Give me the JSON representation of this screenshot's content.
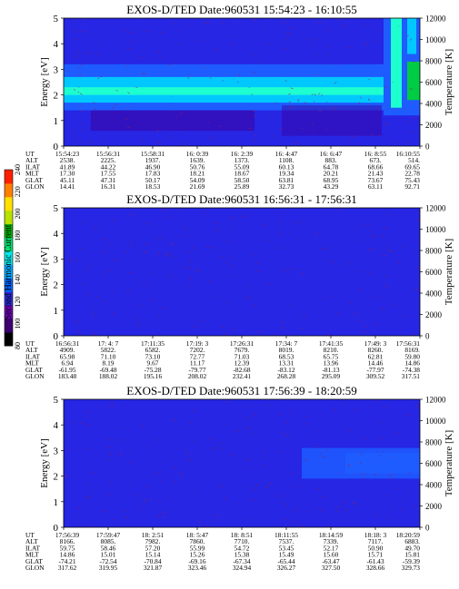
{
  "colors": {
    "purple": "#3c00a0",
    "blue": "#2626e4",
    "mid_blue": "#1e5cff",
    "cyan": "#00c8ff",
    "aqua": "#1effcf",
    "green": "#00cc44",
    "noise": "#9a1e54"
  },
  "colorbar": {
    "label": "Second Harmonic Current",
    "ticks": [
      "80",
      "100",
      "120",
      "140",
      "160",
      "180",
      "200",
      "220",
      "240"
    ],
    "colors": [
      "#000000",
      "#3c0070",
      "#6a00b0",
      "#2a2ad8",
      "#0066ff",
      "#00a8ff",
      "#00e8e8",
      "#00e070",
      "#00b000",
      "#b8e000",
      "#ffe000",
      "#ff8000",
      "#ff2000"
    ]
  },
  "panels": [
    {
      "title": "EXOS-D/TED  Date:960531  15:54:23 - 16:10:55",
      "ylabel": "Energy [eV]",
      "y2label": "Temperature [K]",
      "yticks": [
        "0",
        "1",
        "2",
        "3",
        "4",
        "5"
      ],
      "y2ticks": [
        "0",
        "2000",
        "4000",
        "6000",
        "8000",
        "10000",
        "12000"
      ],
      "rows": [
        {
          "label": "UT",
          "values": [
            "15:54:23",
            "15:56:31",
            "15:58:31",
            "16: 0:39",
            "16: 2:39",
            "16: 4:47",
            "16: 6:47",
            "16: 8:55",
            "16:10:55"
          ]
        },
        {
          "label": "ALT",
          "values": [
            "2538.",
            "2225.",
            "1937.",
            "1639.",
            "1373.",
            "1108.",
            "883.",
            "673.",
            "514."
          ]
        },
        {
          "label": "ILAT",
          "values": [
            "41.89",
            "44.22",
            "46.90",
            "50.76",
            "55.09",
            "60.13",
            "64.78",
            "68.66",
            "69.65"
          ]
        },
        {
          "label": "MLT",
          "values": [
            "17.30",
            "17.55",
            "17.83",
            "18.21",
            "18.67",
            "19.34",
            "20.21",
            "21.43",
            "22.78"
          ]
        },
        {
          "label": "GLAT",
          "values": [
            "45.11",
            "47.31",
            "50.17",
            "54.09",
            "58.50",
            "63.81",
            "68.95",
            "73.67",
            "75.43"
          ]
        },
        {
          "label": "GLON",
          "values": [
            "14.41",
            "16.31",
            "18.53",
            "21.69",
            "25.89",
            "32.73",
            "43.29",
            "63.11",
            "92.71"
          ]
        }
      ]
    },
    {
      "title": "EXOS-D/TED  Date:960531  16:56:31 - 17:56:31",
      "ylabel": "Energy [eV]",
      "y2label": "Temperature [K]",
      "yticks": [
        "0",
        "1",
        "2",
        "3",
        "4",
        "5"
      ],
      "y2ticks": [
        "0",
        "2000",
        "4000",
        "6000",
        "8000",
        "10000",
        "12000"
      ],
      "rows": [
        {
          "label": "UT",
          "values": [
            "16:56:31",
            "17: 4: 7",
            "17:11:35",
            "17:19: 3",
            "17:26:31",
            "17:34: 7",
            "17:41:35",
            "17:49: 3",
            "17:56:31"
          ]
        },
        {
          "label": "ALT",
          "values": [
            "4909.",
            "5822.",
            "6582.",
            "7202.",
            "7679.",
            "8019.",
            "8210.",
            "8260.",
            "8169."
          ]
        },
        {
          "label": "ILAT",
          "values": [
            "65.98",
            "71.10",
            "73.10",
            "72.77",
            "71.03",
            "68.53",
            "65.75",
            "62.81",
            "59.80"
          ]
        },
        {
          "label": "MLT",
          "values": [
            "6.94",
            "8.19",
            "9.67",
            "11.17",
            "12.39",
            "13.31",
            "13.96",
            "14.46",
            "14.86"
          ]
        },
        {
          "label": "GLAT",
          "values": [
            "-61.95",
            "-69.48",
            "-75.28",
            "-79.77",
            "-82.68",
            "-83.12",
            "-81.13",
            "-77.97",
            "-74.38"
          ]
        },
        {
          "label": "GLON",
          "values": [
            "183.48",
            "188.02",
            "195.16",
            "208.02",
            "232.41",
            "268.28",
            "295.09",
            "309.52",
            "317.51"
          ]
        }
      ]
    },
    {
      "title": "EXOS-D/TED  Date:960531  17:56:39 - 18:20:59",
      "ylabel": "Energy [eV]",
      "y2label": "Temperature [K]",
      "yticks": [
        "0",
        "1",
        "2",
        "3",
        "4",
        "5"
      ],
      "y2ticks": [
        "0",
        "2000",
        "4000",
        "6000",
        "8000",
        "10000",
        "12000"
      ],
      "rows": [
        {
          "label": "UT",
          "values": [
            "17:56:39",
            "17:59:47",
            "18: 2:51",
            "18: 5:47",
            "18: 8:51",
            "18:11:55",
            "18:14:59",
            "18:18: 3",
            "18:20:59"
          ]
        },
        {
          "label": "ALT",
          "values": [
            "8166.",
            "8085.",
            "7982.",
            "7860.",
            "7710.",
            "7537.",
            "7339.",
            "7117.",
            "6883."
          ]
        },
        {
          "label": "ILAT",
          "values": [
            "59.75",
            "58.46",
            "57.20",
            "55.99",
            "54.72",
            "53.45",
            "52.17",
            "50.90",
            "49.70"
          ]
        },
        {
          "label": "MLT",
          "values": [
            "14.86",
            "15.01",
            "15.14",
            "15.26",
            "15.38",
            "15.49",
            "15.60",
            "15.71",
            "15.81"
          ]
        },
        {
          "label": "GLAT",
          "values": [
            "-74.21",
            "-72.54",
            "-70.84",
            "-69.16",
            "-67.34",
            "-65.44",
            "-63.47",
            "-61.43",
            "-59.39"
          ]
        },
        {
          "label": "GLON",
          "values": [
            "317.62",
            "319.95",
            "321.87",
            "323.46",
            "324.94",
            "326.27",
            "327.50",
            "328.66",
            "329.73"
          ]
        }
      ]
    }
  ],
  "chart_data": [
    {
      "type": "heatmap",
      "title": "EXOS-D/TED  Date:960531  15:54:23 - 16:10:55",
      "ylabel": "Energy [eV]",
      "y2label": "Temperature [K]",
      "ylim": [
        0,
        5
      ],
      "y2lim": [
        0,
        12000
      ],
      "x": [
        "15:54:23",
        "15:56:31",
        "15:58:31",
        "16: 0:39",
        "16: 2:39",
        "16: 4:47",
        "16: 6:47",
        "16: 8:55",
        "16:10:55"
      ],
      "colorbar": {
        "label": "Second Harmonic Current",
        "range": [
          80,
          240
        ]
      },
      "features": [
        {
          "energy_eV": [
            2.0,
            2.3
          ],
          "color": "#1effcf",
          "desc": "bright band"
        },
        {
          "energy_eV": [
            1.7,
            2.7
          ],
          "color": "#00c8ff"
        },
        {
          "energy_eV": [
            1.4,
            3.2
          ],
          "color": "#1e5cff"
        },
        {
          "energy_eV": [
            1.5,
            5.0
          ],
          "time_from": "16: 9:30",
          "color": "#1effcf",
          "desc": "broadening near end of interval"
        }
      ]
    },
    {
      "type": "heatmap",
      "title": "EXOS-D/TED  Date:960531  16:56:31 - 17:56:31",
      "ylabel": "Energy [eV]",
      "y2label": "Temperature [K]",
      "ylim": [
        0,
        5
      ],
      "y2lim": [
        0,
        12000
      ],
      "x": [
        "16:56:31",
        "17: 4: 7",
        "17:11:35",
        "17:19: 3",
        "17:26:31",
        "17:34: 7",
        "17:41:35",
        "17:49: 3",
        "17:56:31"
      ],
      "colorbar": {
        "label": "Second Harmonic Current",
        "range": [
          80,
          240
        ]
      },
      "features": [
        {
          "energy_eV": [
            0,
            5
          ],
          "color": "#2626e4",
          "desc": "uniform background"
        }
      ]
    },
    {
      "type": "heatmap",
      "title": "EXOS-D/TED  Date:960531  17:56:39 - 18:20:59",
      "ylabel": "Energy [eV]",
      "y2label": "Temperature [K]",
      "ylim": [
        0,
        5
      ],
      "y2lim": [
        0,
        12000
      ],
      "x": [
        "17:56:39",
        "17:59:47",
        "18: 2:51",
        "18: 5:47",
        "18: 8:51",
        "18:11:55",
        "18:14:59",
        "18:18: 3",
        "18:20:59"
      ],
      "colorbar": {
        "label": "Second Harmonic Current",
        "range": [
          80,
          240
        ]
      },
      "features": [
        {
          "energy_eV": [
            2.0,
            3.0
          ],
          "time_from": "18:13:30",
          "color": "#1e5cff",
          "desc": "weak band at end of interval"
        }
      ]
    }
  ]
}
